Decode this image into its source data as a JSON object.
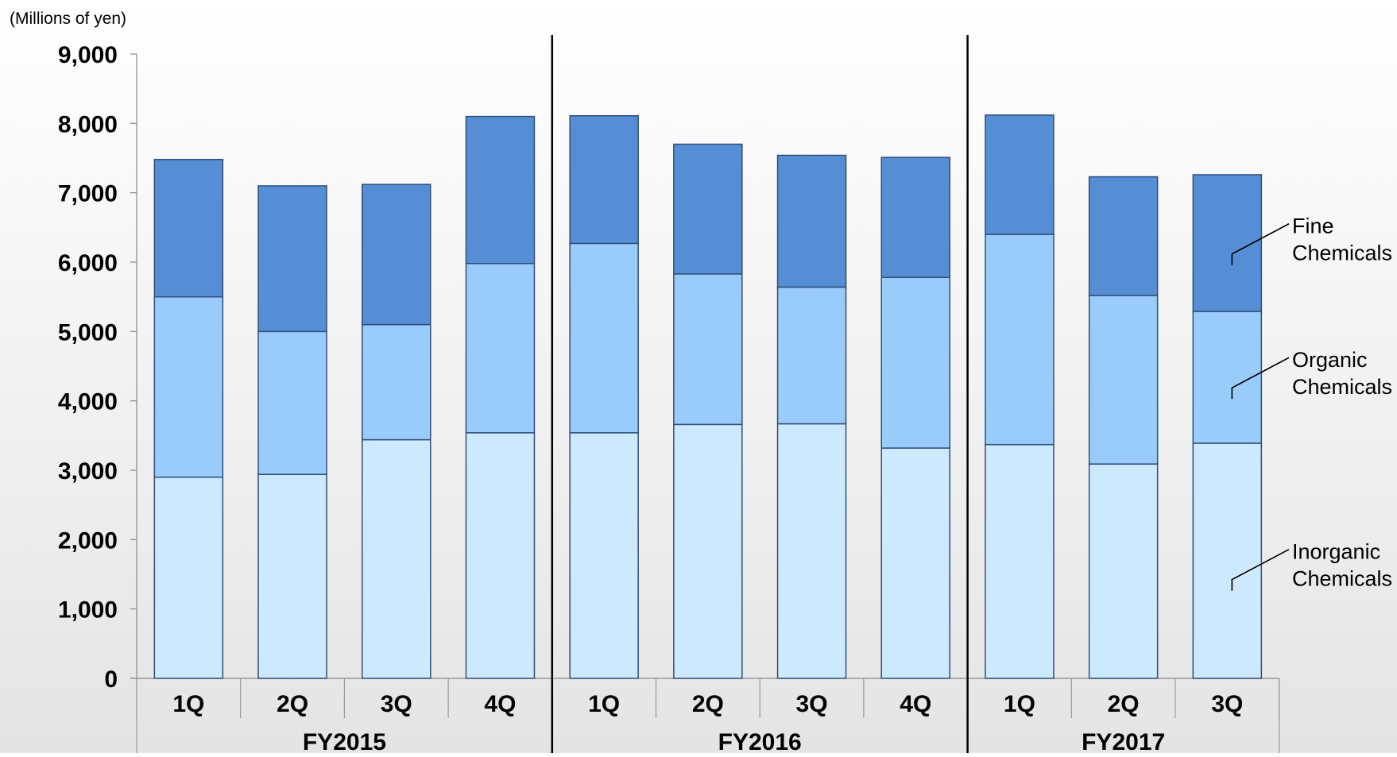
{
  "chart_data": {
    "type": "bar",
    "stacked": true,
    "unit_label": "(Millions of yen)",
    "ylim": [
      0,
      9000
    ],
    "yticks": [
      "0",
      "1,000",
      "2,000",
      "3,000",
      "4,000",
      "5,000",
      "6,000",
      "7,000",
      "8,000",
      "9,000"
    ],
    "ytick_values": [
      0,
      1000,
      2000,
      3000,
      4000,
      5000,
      6000,
      7000,
      8000,
      9000
    ],
    "grid": false,
    "categories": [
      "1Q",
      "2Q",
      "3Q",
      "4Q",
      "1Q",
      "2Q",
      "3Q",
      "4Q",
      "1Q",
      "2Q",
      "3Q"
    ],
    "groups": [
      {
        "label": "FY2015",
        "count": 4
      },
      {
        "label": "FY2016",
        "count": 4
      },
      {
        "label": "FY2017",
        "count": 3
      }
    ],
    "series": [
      {
        "name": "Inorganic Chemicals",
        "label_lines": [
          "Inorganic",
          "Chemicals"
        ],
        "color": "#cce9fd",
        "values": [
          2900,
          2940,
          3440,
          3540,
          3540,
          3660,
          3670,
          3320,
          3370,
          3090,
          3390
        ]
      },
      {
        "name": "Organic Chemicals",
        "label_lines": [
          "Organic",
          "Chemicals"
        ],
        "color": "#99ccfa",
        "values": [
          2600,
          2060,
          1660,
          2440,
          2730,
          2170,
          1970,
          2460,
          3030,
          2430,
          1900
        ]
      },
      {
        "name": "Fine Chemicals",
        "label_lines": [
          "Fine",
          "Chemicals"
        ],
        "color": "#558ed5",
        "values": [
          1980,
          2100,
          2020,
          2120,
          1840,
          1870,
          1900,
          1730,
          1720,
          1710,
          1970
        ]
      }
    ]
  }
}
